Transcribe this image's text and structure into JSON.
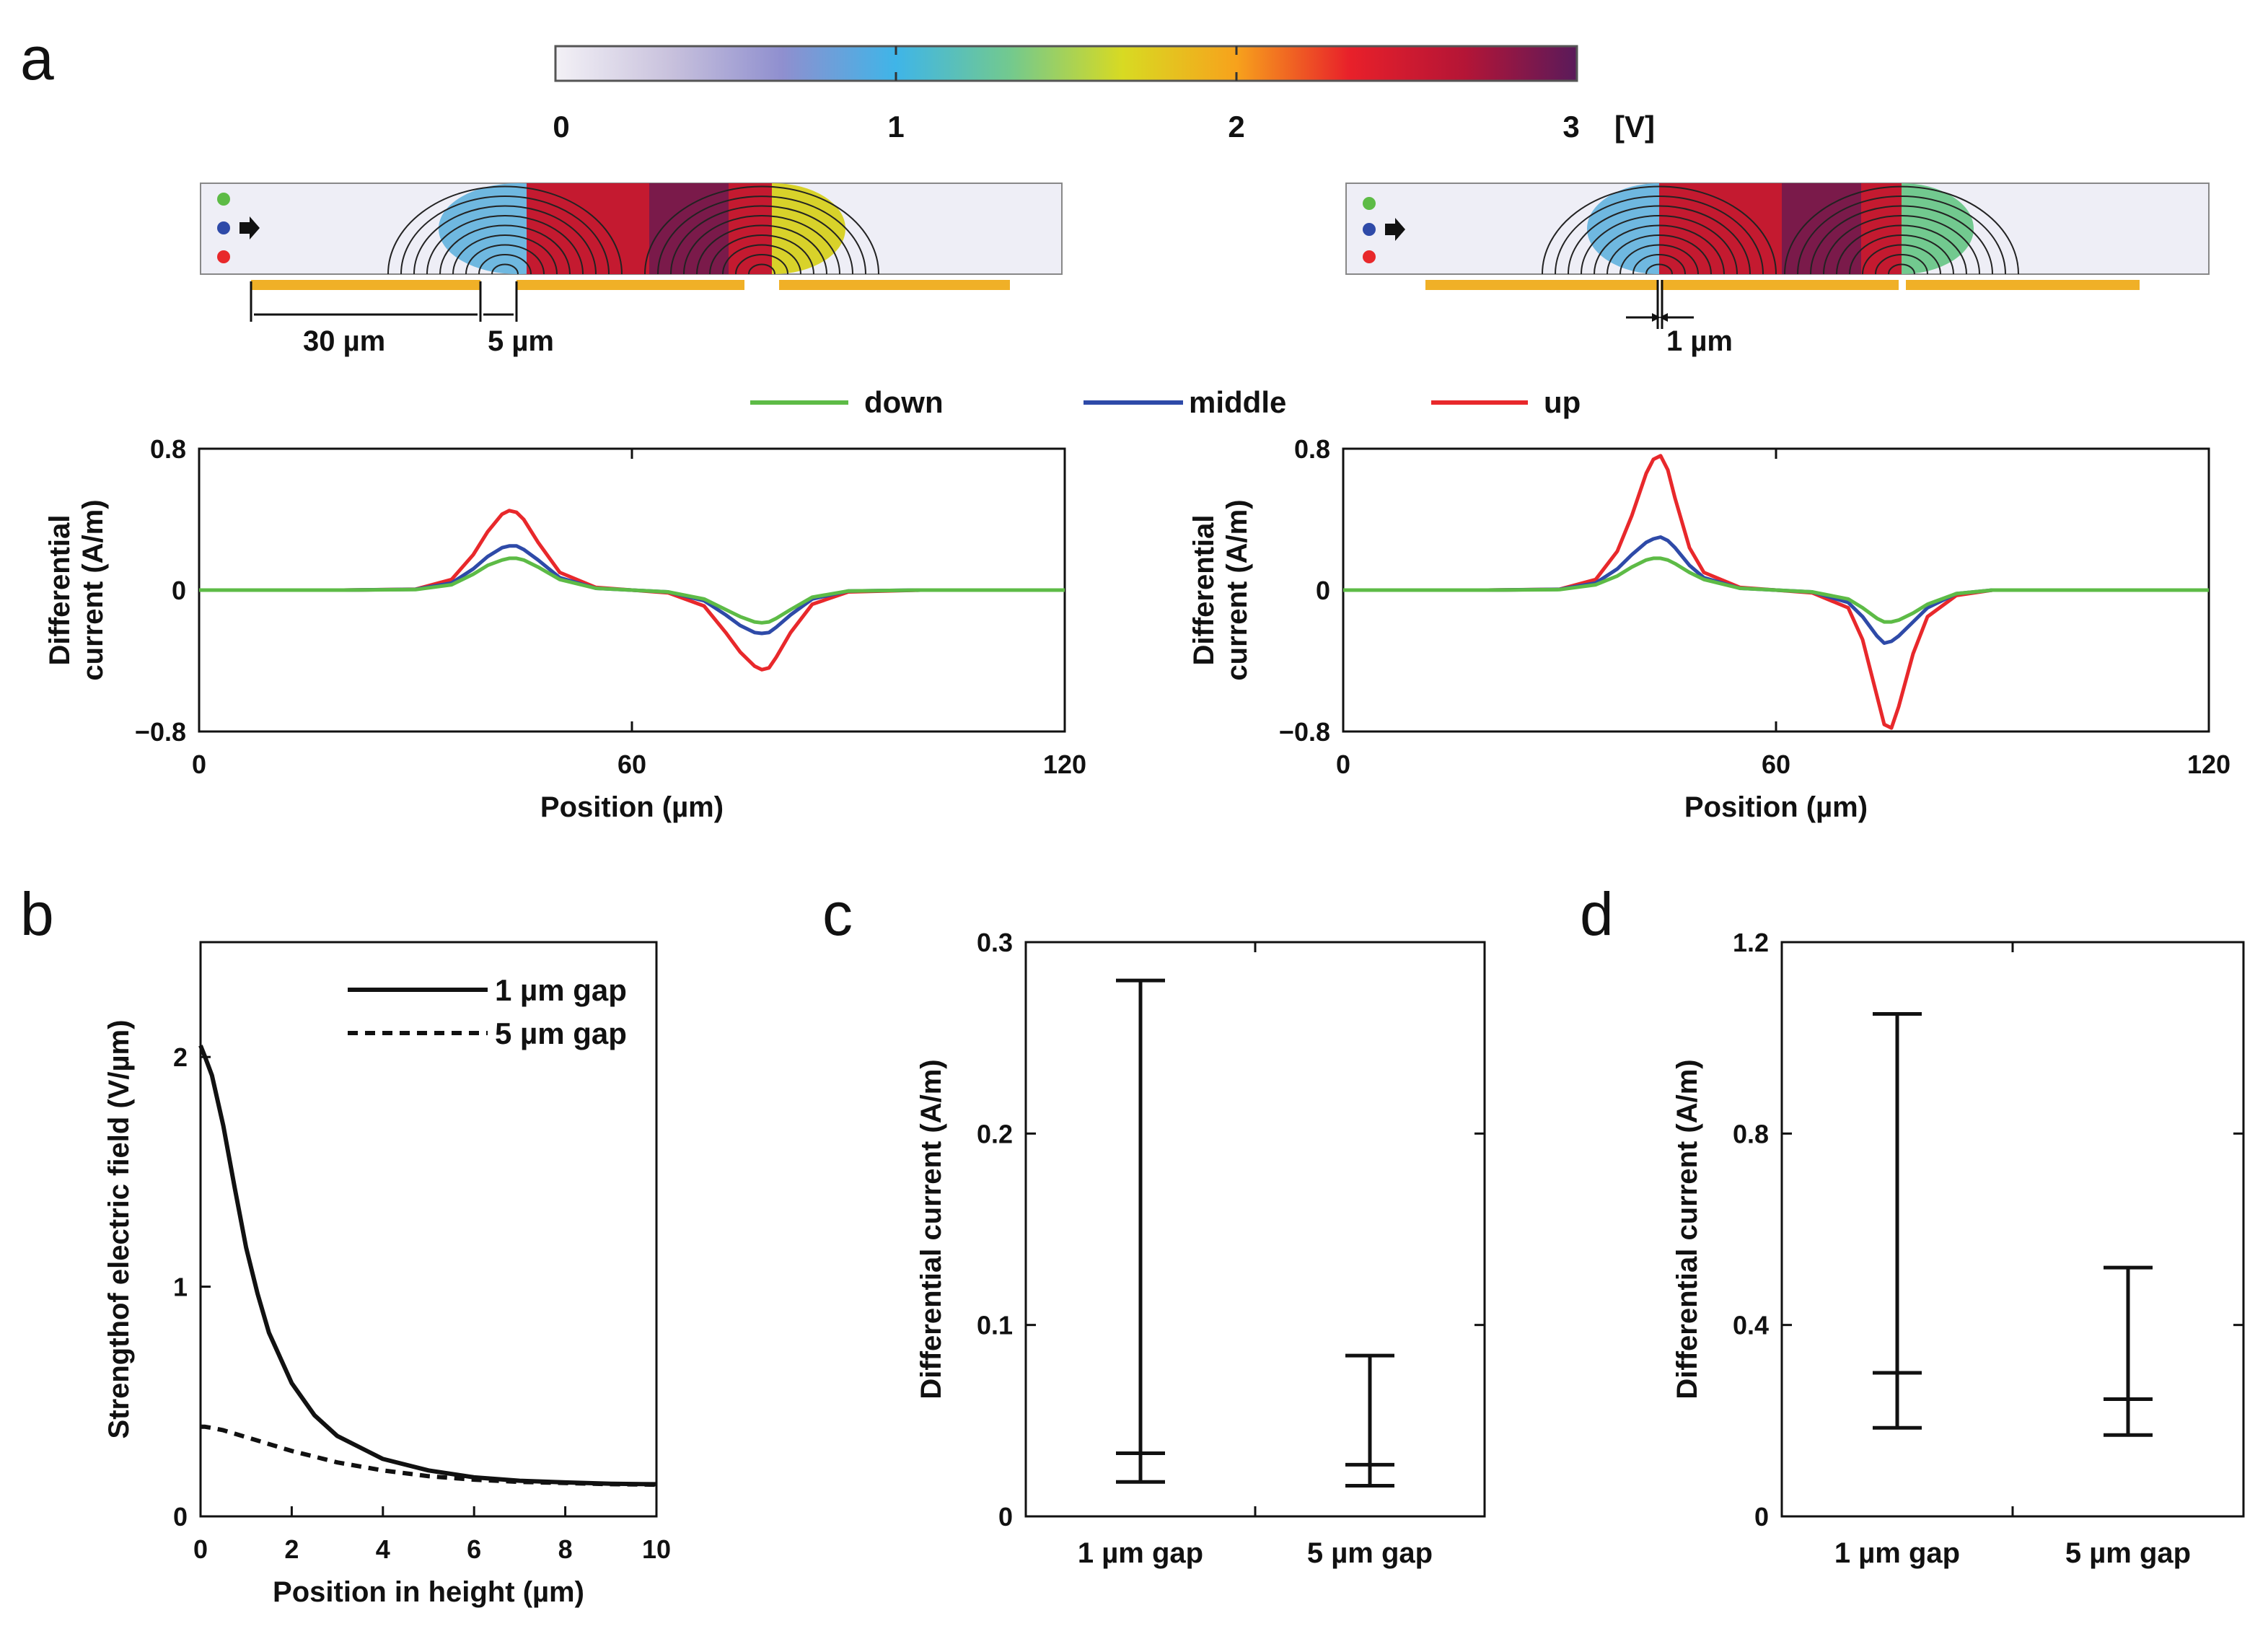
{
  "panel_labels": {
    "a": "a",
    "b": "b",
    "c": "c",
    "d": "d"
  },
  "colors": {
    "down": "#5dbb46",
    "middle": "#2e4aa8",
    "up": "#e8282b",
    "electrode": "#f0b027",
    "ink": "#111111"
  },
  "colorbar": {
    "ticks": [
      "0",
      "1",
      "2",
      "3"
    ],
    "unit": "[V]",
    "range": [
      0,
      3
    ],
    "colormap": [
      "#f3f1f6",
      "#c9c2dd",
      "#8f8fcf",
      "#3fb5e8",
      "#72c98f",
      "#d8da22",
      "#f7a21c",
      "#e8202a",
      "#b51536",
      "#5a1a5a"
    ]
  },
  "sim_left": {
    "dim_width": "30 µm",
    "dim_gap": "5 µm"
  },
  "sim_right": {
    "dim_gap": "1 µm"
  },
  "legend_a": {
    "down": "down",
    "middle": "middle",
    "up": "up"
  },
  "chart_data": [
    {
      "id": "a-left",
      "type": "line",
      "title": "",
      "xlabel": "Position (µm)",
      "ylabel_line1": "Differential",
      "ylabel_line2": "current  (A/m)",
      "xlim": [
        0,
        120
      ],
      "ylim": [
        -0.8,
        0.8
      ],
      "xticks": [
        0,
        60,
        120
      ],
      "xtick_labels": [
        "0",
        "60",
        "120"
      ],
      "yticks": [
        0.8,
        0,
        -0.8
      ],
      "ytick_labels": [
        "0.8",
        "0",
        "−0.8"
      ],
      "x": [
        0,
        10,
        20,
        30,
        35,
        38,
        40,
        42,
        43,
        44,
        45,
        47,
        50,
        55,
        60,
        65,
        70,
        73,
        75,
        77,
        78,
        79,
        80,
        82,
        85,
        90,
        100,
        110,
        120
      ],
      "series": [
        {
          "name": "down",
          "values": [
            0,
            0,
            0,
            0.003,
            0.03,
            0.09,
            0.14,
            0.17,
            0.18,
            0.18,
            0.17,
            0.13,
            0.06,
            0.01,
            0,
            -0.01,
            -0.05,
            -0.11,
            -0.15,
            -0.18,
            -0.185,
            -0.18,
            -0.16,
            -0.11,
            -0.04,
            -0.005,
            0,
            0,
            0
          ]
        },
        {
          "name": "middle",
          "values": [
            0,
            0,
            0,
            0.004,
            0.04,
            0.12,
            0.19,
            0.24,
            0.25,
            0.25,
            0.23,
            0.17,
            0.07,
            0.01,
            0,
            -0.01,
            -0.06,
            -0.14,
            -0.2,
            -0.24,
            -0.245,
            -0.24,
            -0.21,
            -0.14,
            -0.05,
            -0.005,
            0,
            0,
            0
          ]
        },
        {
          "name": "up",
          "values": [
            0,
            0,
            0,
            0.005,
            0.06,
            0.2,
            0.33,
            0.43,
            0.45,
            0.44,
            0.4,
            0.27,
            0.1,
            0.015,
            0,
            -0.015,
            -0.09,
            -0.24,
            -0.35,
            -0.43,
            -0.45,
            -0.44,
            -0.38,
            -0.24,
            -0.08,
            -0.01,
            0,
            0,
            0
          ]
        }
      ]
    },
    {
      "id": "a-right",
      "type": "line",
      "title": "",
      "xlabel": "Position (µm)",
      "ylabel_line1": "Differential",
      "ylabel_line2": "current  (A/m)",
      "xlim": [
        0,
        120
      ],
      "ylim": [
        -0.8,
        0.8
      ],
      "xticks": [
        0,
        60,
        120
      ],
      "xtick_labels": [
        "0",
        "60",
        "120"
      ],
      "yticks": [
        0.8,
        0,
        -0.8
      ],
      "ytick_labels": [
        "0.8",
        "0",
        "−0.8"
      ],
      "x": [
        0,
        10,
        20,
        30,
        35,
        38,
        40,
        42,
        43,
        44,
        45,
        46,
        48,
        50,
        55,
        60,
        65,
        70,
        72,
        74,
        75,
        76,
        77,
        79,
        81,
        85,
        90,
        100,
        110,
        120
      ],
      "series": [
        {
          "name": "down",
          "values": [
            0,
            0,
            0,
            0.003,
            0.03,
            0.08,
            0.13,
            0.17,
            0.18,
            0.18,
            0.17,
            0.15,
            0.1,
            0.06,
            0.01,
            0,
            -0.01,
            -0.05,
            -0.1,
            -0.16,
            -0.18,
            -0.18,
            -0.17,
            -0.13,
            -0.08,
            -0.02,
            0,
            0,
            0,
            0
          ]
        },
        {
          "name": "middle",
          "values": [
            0,
            0,
            0,
            0.004,
            0.04,
            0.12,
            0.2,
            0.27,
            0.29,
            0.3,
            0.28,
            0.24,
            0.14,
            0.07,
            0.01,
            0,
            -0.01,
            -0.07,
            -0.15,
            -0.26,
            -0.3,
            -0.29,
            -0.26,
            -0.18,
            -0.1,
            -0.02,
            0,
            0,
            0,
            0
          ]
        },
        {
          "name": "up",
          "values": [
            0,
            0,
            0,
            0.005,
            0.06,
            0.22,
            0.42,
            0.66,
            0.74,
            0.76,
            0.68,
            0.52,
            0.24,
            0.1,
            0.015,
            0,
            -0.015,
            -0.1,
            -0.28,
            -0.6,
            -0.76,
            -0.78,
            -0.66,
            -0.36,
            -0.15,
            -0.03,
            0,
            0,
            0,
            0
          ]
        }
      ]
    },
    {
      "id": "b",
      "type": "line",
      "title": "",
      "xlabel": "Position in height (µm)",
      "ylabel": "Strengthof electric field (V/µm)",
      "xlim": [
        0,
        10
      ],
      "ylim": [
        0,
        2.5
      ],
      "xticks": [
        0,
        2,
        4,
        6,
        8,
        10
      ],
      "xtick_labels": [
        "0",
        "2",
        "4",
        "6",
        "8",
        "10"
      ],
      "yticks": [
        0,
        1,
        2
      ],
      "ytick_labels": [
        "0",
        "1",
        "2"
      ],
      "legend_position": "top-right",
      "x": [
        0,
        0.1,
        0.25,
        0.5,
        0.75,
        1,
        1.25,
        1.5,
        2,
        2.5,
        3,
        4,
        5,
        6,
        7,
        8,
        9,
        10
      ],
      "series": [
        {
          "name": "1 µm gap",
          "style": "solid",
          "values": [
            2.05,
            2.0,
            1.92,
            1.7,
            1.43,
            1.17,
            0.97,
            0.8,
            0.58,
            0.44,
            0.35,
            0.25,
            0.2,
            0.17,
            0.155,
            0.148,
            0.142,
            0.14
          ]
        },
        {
          "name": "5 µm gap",
          "style": "dashed",
          "values": [
            0.39,
            0.39,
            0.385,
            0.375,
            0.36,
            0.345,
            0.33,
            0.315,
            0.285,
            0.26,
            0.235,
            0.2,
            0.175,
            0.16,
            0.15,
            0.145,
            0.14,
            0.138
          ]
        }
      ]
    },
    {
      "id": "c",
      "type": "errorbar",
      "title": "",
      "xlabel": "",
      "ylabel": "Differential  current  (A/m)",
      "ylim": [
        0,
        0.3
      ],
      "yticks": [
        0,
        0.1,
        0.2,
        0.3
      ],
      "ytick_labels": [
        "0",
        "0.1",
        "0.2",
        "0.3"
      ],
      "categories": [
        "1 µm gap",
        "5 µm gap"
      ],
      "min": [
        0.018,
        0.016
      ],
      "mid": [
        0.033,
        0.027
      ],
      "max": [
        0.28,
        0.084
      ]
    },
    {
      "id": "d",
      "type": "errorbar",
      "title": "",
      "xlabel": "",
      "ylabel": "Differential  current  (A/m)",
      "ylim": [
        0,
        1.2
      ],
      "yticks": [
        0,
        0.4,
        0.8,
        1.2
      ],
      "ytick_labels": [
        "0",
        "0.4",
        "0.8",
        "1.2"
      ],
      "categories": [
        "1 µm gap",
        "5 µm gap"
      ],
      "min": [
        0.185,
        0.17
      ],
      "mid": [
        0.3,
        0.245
      ],
      "max": [
        1.05,
        0.52
      ]
    }
  ]
}
